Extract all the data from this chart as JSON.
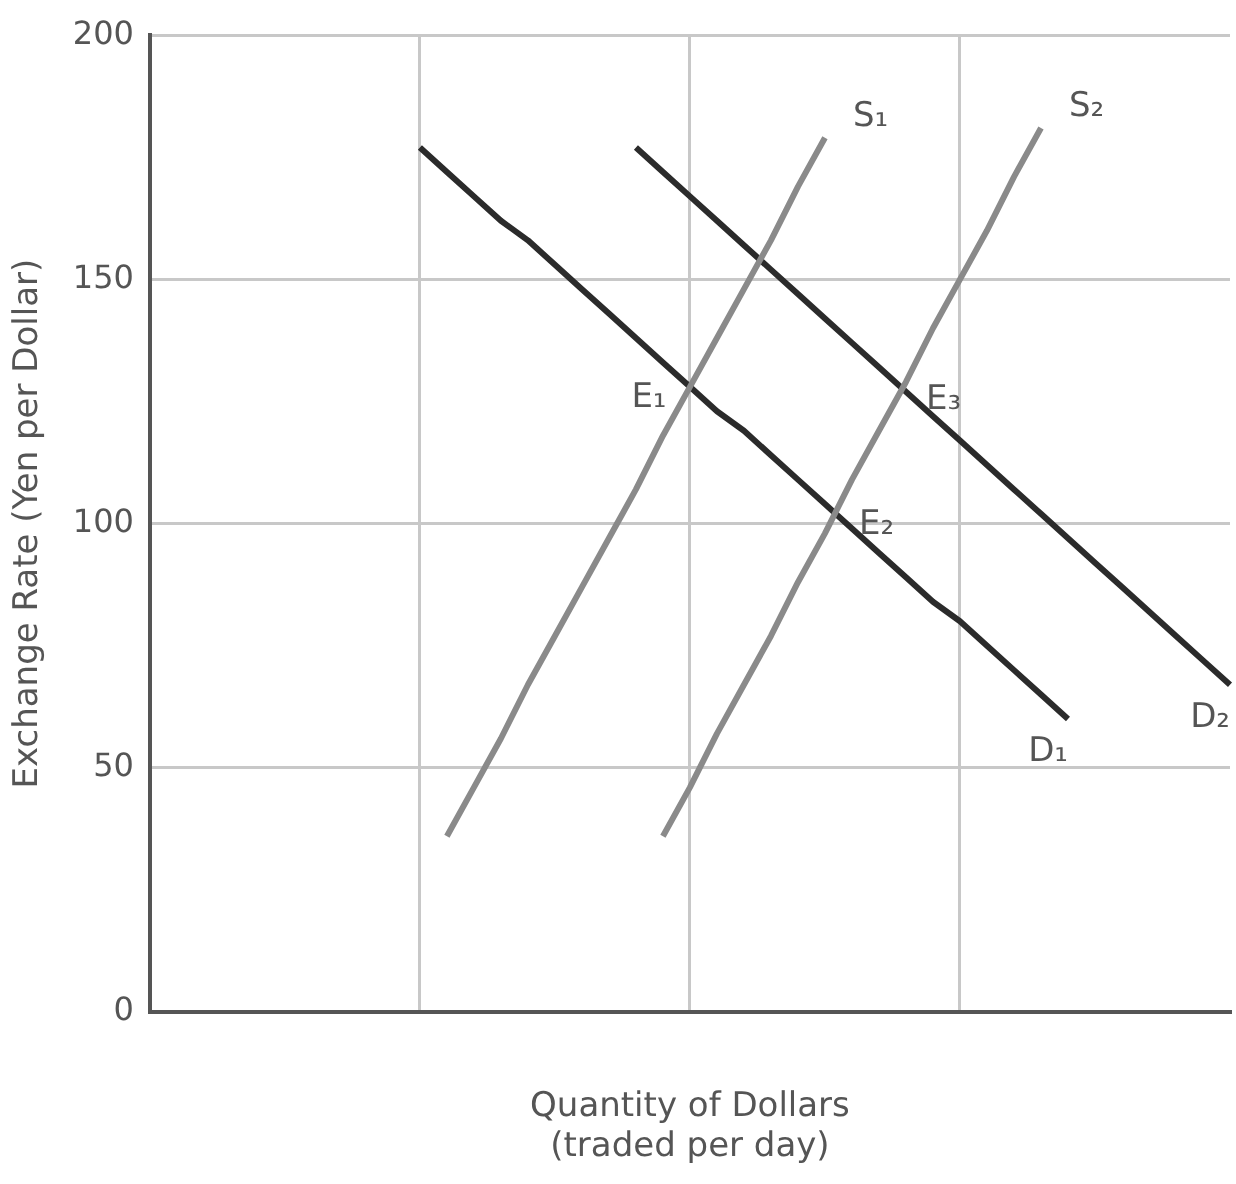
{
  "chart_data": {
    "type": "line",
    "xlabel": "Quantity of Dollars\n(traded per day)",
    "ylabel": "Exchange Rate (Yen per Dollar)",
    "categories": [
      null,
      null,
      null,
      null,
      null,
      null,
      null,
      null,
      null,
      null,
      null,
      null,
      null,
      null,
      null,
      null,
      null,
      null,
      null,
      null,
      null,
      null,
      null,
      null,
      null,
      null,
      null,
      null,
      null,
      null,
      null,
      null,
      null,
      null,
      null,
      null,
      null,
      null,
      null,
      null,
      null
    ],
    "ylim": [
      0,
      200
    ],
    "yticks": [
      0,
      50,
      100,
      150,
      200
    ],
    "grid": true,
    "marker": "none",
    "line_style": "solid",
    "series": [
      {
        "name": "S₁",
        "color": "#8a8a8a",
        "values": [
          null,
          null,
          null,
          null,
          null,
          null,
          null,
          null,
          null,
          null,
          null,
          36,
          46,
          56,
          67,
          77,
          87,
          97,
          107,
          118,
          128,
          138,
          148,
          158,
          169,
          179,
          null,
          null,
          null,
          null,
          null,
          null,
          null,
          null,
          null,
          null,
          null,
          null,
          null,
          null,
          null
        ]
      },
      {
        "name": "S₂",
        "color": "#8a8a8a",
        "values": [
          null,
          null,
          null,
          null,
          null,
          null,
          null,
          null,
          null,
          null,
          null,
          null,
          null,
          null,
          null,
          null,
          null,
          null,
          null,
          36,
          46,
          57,
          67,
          77,
          88,
          98,
          109,
          119,
          129,
          140,
          150,
          160,
          171,
          181,
          null,
          null,
          null,
          null,
          null,
          null,
          null
        ]
      },
      {
        "name": "D₁",
        "color": "#2b2b2b",
        "values": [
          null,
          null,
          null,
          null,
          null,
          null,
          null,
          null,
          null,
          null,
          177,
          172,
          167,
          162,
          158,
          153,
          148,
          143,
          138,
          133,
          128,
          123,
          119,
          114,
          109,
          104,
          99,
          94,
          89,
          84,
          80,
          75,
          70,
          65,
          60,
          null,
          null,
          null,
          null,
          null,
          null
        ]
      },
      {
        "name": "D₂",
        "color": "#2b2b2b",
        "values": [
          null,
          null,
          null,
          null,
          null,
          null,
          null,
          null,
          null,
          null,
          null,
          null,
          null,
          null,
          null,
          null,
          null,
          null,
          177,
          172,
          167,
          162,
          157,
          152,
          147,
          142,
          137,
          132,
          127,
          122,
          117,
          112,
          107,
          102,
          97,
          92,
          87,
          82,
          77,
          72,
          67
        ]
      }
    ],
    "annotations": [
      "E₁",
      "E₂",
      "E₃"
    ]
  }
}
